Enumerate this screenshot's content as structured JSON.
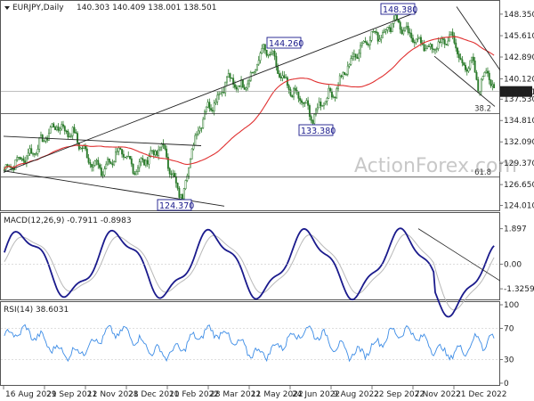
{
  "chart_data": [
    {
      "type": "candlestick",
      "panel": "price",
      "symbol_header": "EURJPY,Daily",
      "ohlc_label": "140.303 140.409 138.001 138.501",
      "last_price": "138.501",
      "watermark": "ActionForex.com",
      "y_ticks": [
        "148.350",
        "145.610",
        "142.890",
        "140.120",
        "137.530",
        "134.810",
        "132.090",
        "129.370",
        "126.650",
        "124.010"
      ],
      "x_ticks": [
        "16 Aug 2021",
        "29 Sep 2021",
        "12 Nov 2021",
        "28 Dec 2021",
        "10 Feb 2022",
        "28 Mar 2022",
        "11 May 2022",
        "24 Jun 2022",
        "9 Aug 2022",
        "22 Sep 2022",
        "7 Nov 2022",
        "21 Dec 2022"
      ],
      "ylim": [
        123.6,
        149.7
      ],
      "callouts": [
        {
          "label": "148.380",
          "value": 148.38
        },
        {
          "label": "144.260",
          "value": 144.26
        },
        {
          "label": "133.380",
          "value": 133.38
        },
        {
          "label": "124.370",
          "value": 124.37
        }
      ],
      "levels": [
        {
          "label": "38.2",
          "value": 135.7
        },
        {
          "label": "61.8",
          "value": 127.6
        }
      ],
      "colors": {
        "up": "#2a7a2a",
        "down": "#2a7a2a",
        "ma": "#e03030",
        "trend": "#222222"
      }
    },
    {
      "type": "line",
      "panel": "macd",
      "header": "MACD(12,26,9) -0.7911 -0.8983",
      "y_ticks": [
        "1.897",
        "0.00",
        "-1.3259"
      ],
      "ylim": [
        -1.8,
        2.6
      ],
      "colors": {
        "macd": "#1a1a8c",
        "signal": "#b8b8b8"
      }
    },
    {
      "type": "line",
      "panel": "rsi",
      "header": "RSI(14) 38.6031",
      "y_ticks": [
        "100",
        "70",
        "30",
        "0"
      ],
      "ylim": [
        0,
        100
      ],
      "colors": {
        "rsi": "#3c8ce6"
      }
    }
  ]
}
